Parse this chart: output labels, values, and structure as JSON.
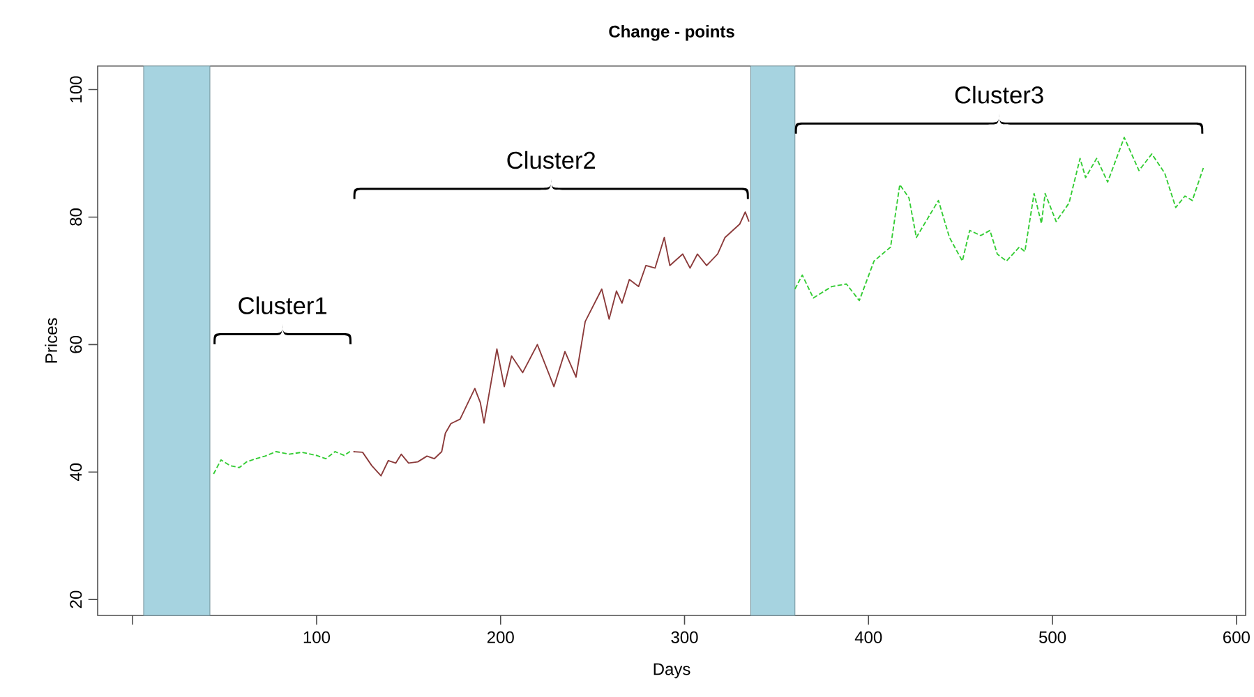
{
  "chart_data": {
    "type": "line",
    "title": "Change - points",
    "xlabel": "Days",
    "ylabel": "Prices",
    "xlim": [
      -19,
      605
    ],
    "ylim": [
      17.5,
      103.7
    ],
    "xticks": [
      {
        "value": 0,
        "label": null
      },
      100,
      200,
      300,
      400,
      500,
      600
    ],
    "yticks": [
      20,
      40,
      60,
      80,
      100
    ],
    "grid": false,
    "marker": "none",
    "bands": [
      {
        "axis": "x",
        "from": 6,
        "to": 42,
        "color": "#a6d3e0"
      },
      {
        "axis": "x",
        "from": 336,
        "to": 360,
        "color": "#a6d3e0"
      }
    ],
    "annotations": [
      "Cluster1",
      "Cluster2",
      "Cluster3"
    ],
    "series": [
      {
        "color": "#33cc33",
        "line_style": "dashed",
        "x": [
          44,
          48,
          53,
          58,
          62,
          67,
          72,
          78,
          85,
          92,
          100,
          105,
          110,
          115,
          119
        ],
        "values": [
          39.7,
          41.9,
          41,
          40.7,
          41.6,
          42.1,
          42.5,
          43.2,
          42.8,
          43.1,
          42.6,
          42.1,
          43.2,
          42.6,
          43.4
        ]
      },
      {
        "color": "#8b3a3a",
        "line_style": "solid",
        "x": [
          120,
          125,
          130,
          135,
          139,
          143,
          146,
          150,
          155,
          160,
          164,
          168,
          170,
          173,
          178,
          186,
          189,
          191,
          198,
          202,
          206,
          212,
          220,
          229,
          235,
          241,
          246,
          255,
          259,
          263,
          266,
          270,
          275,
          279,
          284,
          289,
          292,
          299,
          303,
          307,
          312,
          318,
          322,
          330,
          333,
          335
        ],
        "values": [
          43.2,
          43.1,
          41,
          39.4,
          41.8,
          41.4,
          42.8,
          41.4,
          41.6,
          42.5,
          42.1,
          43.2,
          46.1,
          47.6,
          48.3,
          53.1,
          50.9,
          47.7,
          59.3,
          53.4,
          58.2,
          55.6,
          60,
          53.4,
          58.9,
          54.9,
          63.6,
          68.7,
          64,
          68.4,
          66.5,
          70.2,
          69.1,
          72.4,
          72,
          76.8,
          72.4,
          74.2,
          72,
          74.2,
          72.4,
          74.2,
          76.8,
          78.9,
          80.8,
          79.3
        ]
      },
      {
        "color": "#33cc33",
        "line_style": "dashed",
        "x": [
          360,
          364,
          370,
          380,
          388,
          395,
          403,
          412,
          417,
          422,
          426,
          432,
          438,
          444,
          451,
          455,
          461,
          466,
          470,
          475,
          482,
          485,
          490,
          494,
          496,
          502,
          509,
          515,
          518,
          524,
          530,
          539,
          547,
          554,
          561,
          567,
          572,
          576,
          582
        ],
        "values": [
          68.7,
          70.9,
          67.3,
          69.1,
          69.5,
          66.9,
          73.1,
          75.3,
          85.1,
          83,
          76.8,
          79.7,
          82.6,
          76.8,
          73.1,
          77.9,
          77.1,
          77.9,
          74.2,
          73.1,
          75.3,
          74.6,
          83.7,
          79,
          83.7,
          79.3,
          82.2,
          89.2,
          86.2,
          89.2,
          85.5,
          92.5,
          87.3,
          89.9,
          86.9,
          81.5,
          83.3,
          82.6,
          87.7
        ]
      }
    ]
  }
}
